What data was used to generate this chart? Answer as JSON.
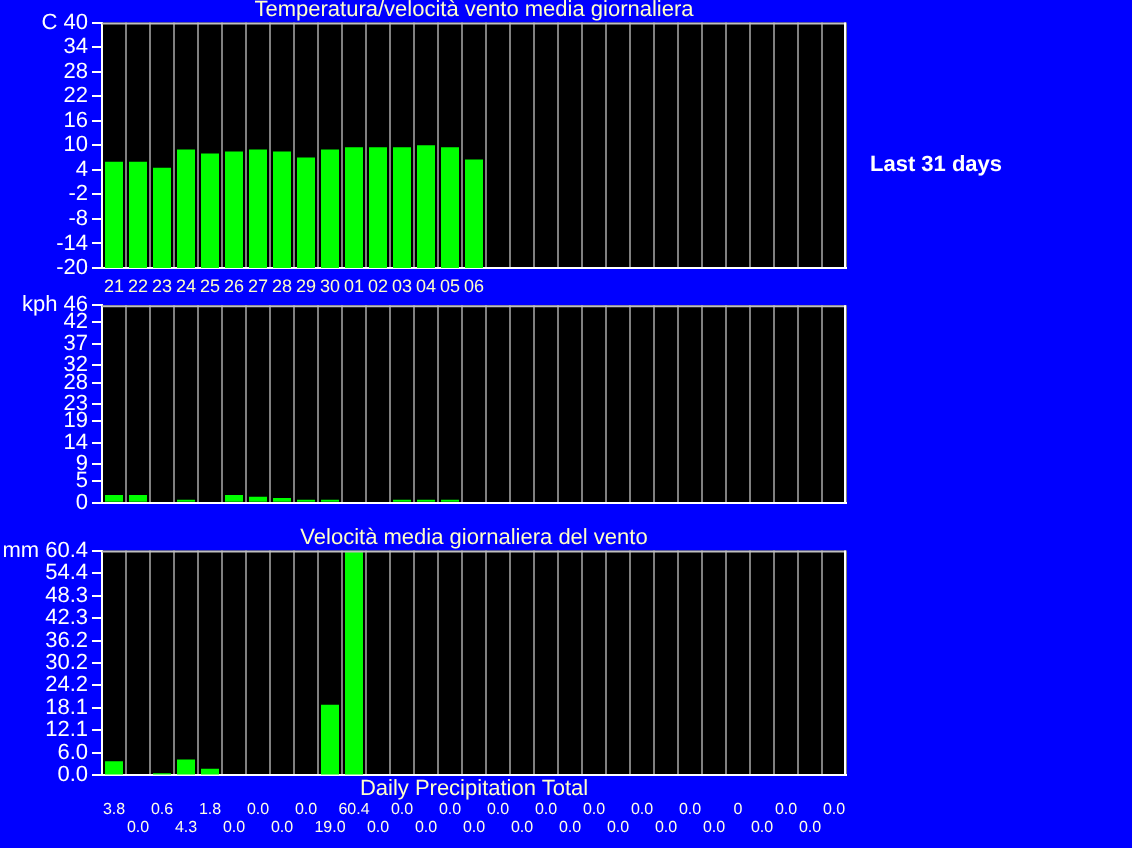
{
  "chart_data": [
    {
      "type": "bar",
      "title": "Temperatura/velocità vento media giornaliera",
      "ylabel": "C",
      "categories": [
        "21",
        "22",
        "23",
        "24",
        "25",
        "26",
        "27",
        "28",
        "29",
        "30",
        "01",
        "02",
        "03",
        "04",
        "05",
        "06",
        null,
        null,
        null,
        null,
        null,
        null,
        null,
        null,
        null,
        null,
        null,
        null,
        null,
        null,
        null
      ],
      "base": [
        -20,
        -20,
        -20,
        -20,
        -20,
        -20,
        -20,
        -20,
        -20,
        -20,
        -20,
        -20,
        -20,
        -20,
        -20,
        -20,
        null,
        null,
        null,
        null,
        null,
        null,
        null,
        null,
        null,
        null,
        null,
        null,
        null,
        null,
        null
      ],
      "values": [
        26,
        26,
        24.5,
        29,
        28,
        28.5,
        29,
        28.5,
        27,
        29,
        29.5,
        29.5,
        29.5,
        30,
        29.5,
        26.5,
        null,
        null,
        null,
        null,
        null,
        null,
        null,
        null,
        null,
        null,
        null,
        null,
        null,
        null,
        null
      ],
      "color": "#00ff00",
      "ylim": [
        -20,
        40
      ],
      "yticks": [
        -20,
        -14,
        -8,
        -2,
        4,
        10,
        16,
        22,
        28,
        34,
        40
      ],
      "grid": "x",
      "annotations": [
        "Last 31 days"
      ]
    },
    {
      "type": "bar",
      "ylabel": "kph",
      "categories": [
        "21",
        "22",
        "23",
        "24",
        "25",
        "26",
        "27",
        "28",
        "29",
        "30",
        "01",
        "02",
        "03",
        "04",
        "05",
        "06",
        null,
        null,
        null,
        null,
        null,
        null,
        null,
        null,
        null,
        null,
        null,
        null,
        null,
        null,
        null
      ],
      "values": [
        1.8,
        1.8,
        0,
        0.7,
        0,
        1.8,
        1.4,
        1.1,
        0.7,
        0.7,
        0,
        0,
        0.7,
        0.7,
        0.7,
        0,
        null,
        null,
        null,
        null,
        null,
        null,
        null,
        null,
        null,
        null,
        null,
        null,
        null,
        null,
        null
      ],
      "color": "#00ff00",
      "ylim": [
        0,
        46
      ],
      "yticks": [
        0,
        5,
        9,
        14,
        19,
        23,
        28,
        32,
        37,
        42,
        46
      ],
      "grid": "x",
      "tick_labels": "y"
    },
    {
      "type": "bar",
      "title": "Velocità media giornaliera del vento",
      "xlabel": "Daily Precipitation Total",
      "ylabel": "mm",
      "categories": [
        "21",
        "22",
        "23",
        "24",
        "25",
        "26",
        "27",
        "28",
        "29",
        "30",
        "01",
        "02",
        "03",
        "04",
        "05",
        "06",
        null,
        null,
        null,
        null,
        null,
        null,
        null,
        null,
        null,
        null,
        null,
        null,
        null,
        null,
        null
      ],
      "values": [
        3.8,
        0,
        0.6,
        4.3,
        1.8,
        0,
        0,
        0,
        0,
        19,
        60.4,
        0,
        0,
        0,
        0,
        0,
        0,
        0,
        0,
        0,
        0,
        0,
        0,
        0,
        0,
        0,
        0,
        0,
        0,
        0,
        0
      ],
      "value_labels": [
        "3.8",
        "0.0",
        "0.6",
        "4.3",
        "1.8",
        "0.0",
        "0.0",
        "0.0",
        "0.0",
        "19.0",
        "60.4",
        "0.0",
        "0.0",
        "0.0",
        "0.0",
        "0.0",
        "0.0",
        "0.0",
        "0.0",
        "0.0",
        "0.0",
        "0.0",
        "0.0",
        "0.0",
        "0.0",
        "0.0",
        "0",
        "0.0",
        "0.0",
        "0.0",
        "0.0"
      ],
      "color": "#00ff00",
      "ylim": [
        0,
        60.4
      ],
      "yticks": [
        {
          "value": 0,
          "label": "0.0"
        },
        {
          "value": 6,
          "label": "6.0"
        },
        12.1,
        18.1,
        24.2,
        30.2,
        36.2,
        42.3,
        48.3,
        54.4,
        60.4
      ],
      "grid": "x",
      "tick_labels": "y"
    }
  ]
}
